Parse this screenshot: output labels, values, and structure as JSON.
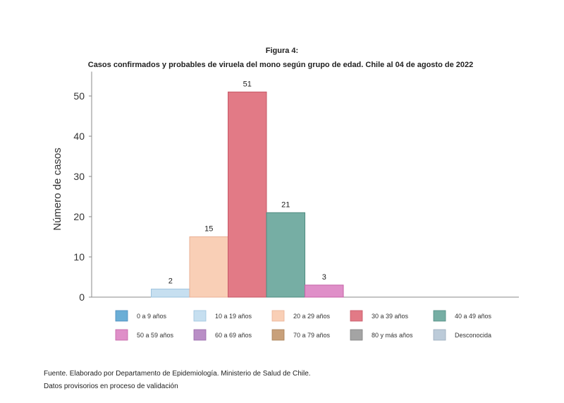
{
  "figure_label": "Figura 4:",
  "figure_title": "Casos confirmados y probables de viruela del mono según grupo de edad. Chile al 04 de agosto de 2022",
  "notes": {
    "source": "Fuente. Elaborado por Departamento de Epidemiología. Ministerio de Salud de Chile.",
    "provisional": "Datos provisorios en proceso de validación"
  },
  "chart_data": {
    "type": "bar",
    "title": "Casos confirmados y probables de viruela del mono según grupo de edad. Chile al 04 de agosto de 2022",
    "xlabel": "",
    "ylabel": "Número de casos",
    "ylim": [
      0,
      55
    ],
    "yticks": [
      0,
      10,
      20,
      30,
      40,
      50
    ],
    "grid": false,
    "legend_position": "bottom",
    "categories": [
      "0 a 9 años",
      "10 a 19 años",
      "20 a 29 años",
      "30 a 39 años",
      "40 a 49 años",
      "50 a 59 años",
      "60 a 69 años",
      "70 a 79 años",
      "80 y más años",
      "Desconocida"
    ],
    "values": [
      0,
      2,
      15,
      51,
      21,
      3,
      0,
      0,
      0,
      0
    ],
    "data_labels": [
      "",
      "2",
      "15",
      "51",
      "21",
      "3",
      "",
      "",
      "",
      ""
    ],
    "colors": [
      "#6baed6",
      "#c6dff0",
      "#f9cfb6",
      "#e27a86",
      "#76aea4",
      "#df8fc8",
      "#b98ec6",
      "#c8a07a",
      "#a4a4a4",
      "#bccbd9"
    ],
    "bar_border_colors": [
      "#4a8cbc",
      "#9cc3de",
      "#eab196",
      "#c65866",
      "#4f8b80",
      "#c462a6",
      "#9a6aaa",
      "#a88058",
      "#808080",
      "#98aabb"
    ]
  }
}
